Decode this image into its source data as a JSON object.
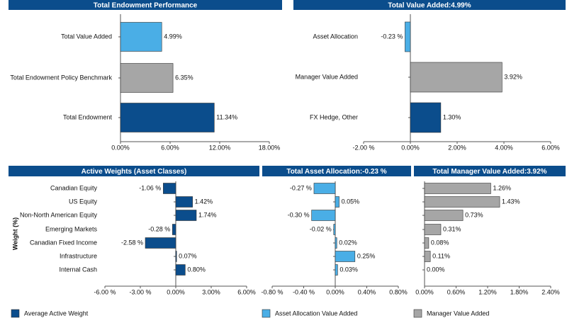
{
  "chart_data": [
    {
      "type": "bar",
      "title": "Total Endowment Performance",
      "categories": [
        "Total Value Added",
        "Total Endowment Policy Benchmark",
        "Total Endowment"
      ],
      "values": [
        4.99,
        6.35,
        11.34
      ],
      "value_labels": [
        "4.99%",
        "6.35%",
        "11.34%"
      ],
      "colors": [
        "#4aaee6",
        "#a6a6a6",
        "#0b4d8c"
      ],
      "xlim": [
        0,
        18
      ],
      "xticks": [
        {
          "value": 0,
          "label": "0.00%"
        },
        {
          "value": 6,
          "label": "6.00%"
        },
        {
          "value": 12,
          "label": "12.00%"
        },
        {
          "value": 18,
          "label": "18.00%"
        }
      ]
    },
    {
      "type": "bar",
      "title": "Total Value Added:4.99%",
      "categories": [
        "Asset Allocation",
        "Manager Value Added",
        "FX Hedge, Other"
      ],
      "values": [
        -0.23,
        3.92,
        1.3
      ],
      "value_labels": [
        "-0.23 %",
        "3.92%",
        "1.30%"
      ],
      "colors": [
        "#4aaee6",
        "#a6a6a6",
        "#0b4d8c"
      ],
      "xlim": [
        -2,
        6
      ],
      "xticks": [
        {
          "value": -2,
          "label": "-2.00 %"
        },
        {
          "value": 0,
          "label": "0.00%"
        },
        {
          "value": 2,
          "label": "2.00%"
        },
        {
          "value": 4,
          "label": "4.00%"
        },
        {
          "value": 6,
          "label": "6.00%"
        }
      ]
    },
    {
      "type": "bar",
      "title": "Active Weights (Asset Classes)",
      "ylabel": "Weight (%)",
      "categories": [
        "Canadian Equity",
        "US Equity",
        "Non-North American Equity",
        "Emerging Markets",
        "Canadian Fixed Income",
        "Infrastructure",
        "Internal Cash"
      ],
      "series": [
        {
          "name": "Average Active Weight",
          "color": "#0b4d8c",
          "values": [
            -1.06,
            1.42,
            1.74,
            -0.28,
            -2.58,
            0.07,
            0.8
          ],
          "value_labels": [
            "-1.06 %",
            "1.42%",
            "1.74%",
            "-0.28 %",
            "-2.58 %",
            "0.07%",
            "0.80%"
          ]
        }
      ],
      "xlim": [
        -6,
        6
      ],
      "xticks": [
        {
          "value": -6,
          "label": "-6.00 %"
        },
        {
          "value": -3,
          "label": "-3.00 %"
        },
        {
          "value": 0,
          "label": "0.00%"
        },
        {
          "value": 3,
          "label": "3.00%"
        },
        {
          "value": 6,
          "label": "6.00%"
        }
      ]
    },
    {
      "type": "bar",
      "title": "Total Asset Allocation:-0.23 %",
      "series": [
        {
          "name": "Asset Allocation Value Added",
          "color": "#4aaee6",
          "values": [
            -0.27,
            0.05,
            -0.3,
            -0.02,
            0.02,
            0.25,
            0.03
          ],
          "value_labels": [
            "-0.27 %",
            "0.05%",
            "-0.30 %",
            "-0.02 %",
            "0.02%",
            "0.25%",
            "0.03%"
          ]
        }
      ],
      "xlim": [
        -0.8,
        0.8
      ],
      "xticks": [
        {
          "value": -0.8,
          "label": "-0.80 %"
        },
        {
          "value": -0.4,
          "label": "-0.40 %"
        },
        {
          "value": 0,
          "label": "0.00%"
        },
        {
          "value": 0.4,
          "label": "0.40%"
        },
        {
          "value": 0.8,
          "label": "0.80%"
        }
      ]
    },
    {
      "type": "bar",
      "title": "Total Manager Value Added:3.92%",
      "series": [
        {
          "name": "Manager Value Added",
          "color": "#a6a6a6",
          "values": [
            1.26,
            1.43,
            0.73,
            0.31,
            0.08,
            0.11,
            0.0
          ],
          "value_labels": [
            "1.26%",
            "1.43%",
            "0.73%",
            "0.31%",
            "0.08%",
            "0.11%",
            "0.00%"
          ]
        }
      ],
      "xlim": [
        0,
        2.4
      ],
      "xticks": [
        {
          "value": 0,
          "label": "0.00%"
        },
        {
          "value": 0.6,
          "label": "0.60%"
        },
        {
          "value": 1.2,
          "label": "1.20%"
        },
        {
          "value": 1.8,
          "label": "1.80%"
        },
        {
          "value": 2.4,
          "label": "2.40%"
        }
      ]
    }
  ]
}
